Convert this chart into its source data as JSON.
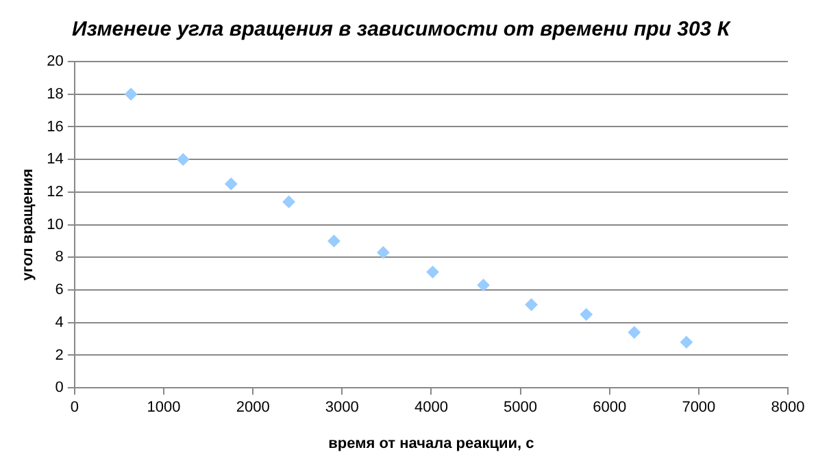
{
  "chart_data": {
    "type": "scatter",
    "title": "Изменеие угла вращения в зависимости от времени при 303 К",
    "xlabel": "время от начала реакции, с",
    "ylabel": "угол вращения",
    "x": [
      632,
      1217,
      1755,
      2403,
      2909,
      3462,
      4016,
      4585,
      5123,
      5739,
      6277,
      6862
    ],
    "series": [
      {
        "color": "#99ccff",
        "values": [
          18,
          14,
          12.5,
          11.4,
          9.0,
          8.3,
          7.1,
          6.3,
          5.1,
          4.5,
          3.4,
          2.8
        ]
      }
    ],
    "xlim": [
      0,
      8000
    ],
    "xticks": [
      0,
      1000,
      2000,
      3000,
      4000,
      5000,
      6000,
      7000,
      8000
    ],
    "ylim": [
      0,
      20
    ],
    "yticks": [
      0,
      2,
      4,
      6,
      8,
      10,
      12,
      14,
      16,
      18,
      20
    ],
    "grid": "y",
    "legend": false,
    "marker": "diamond"
  }
}
